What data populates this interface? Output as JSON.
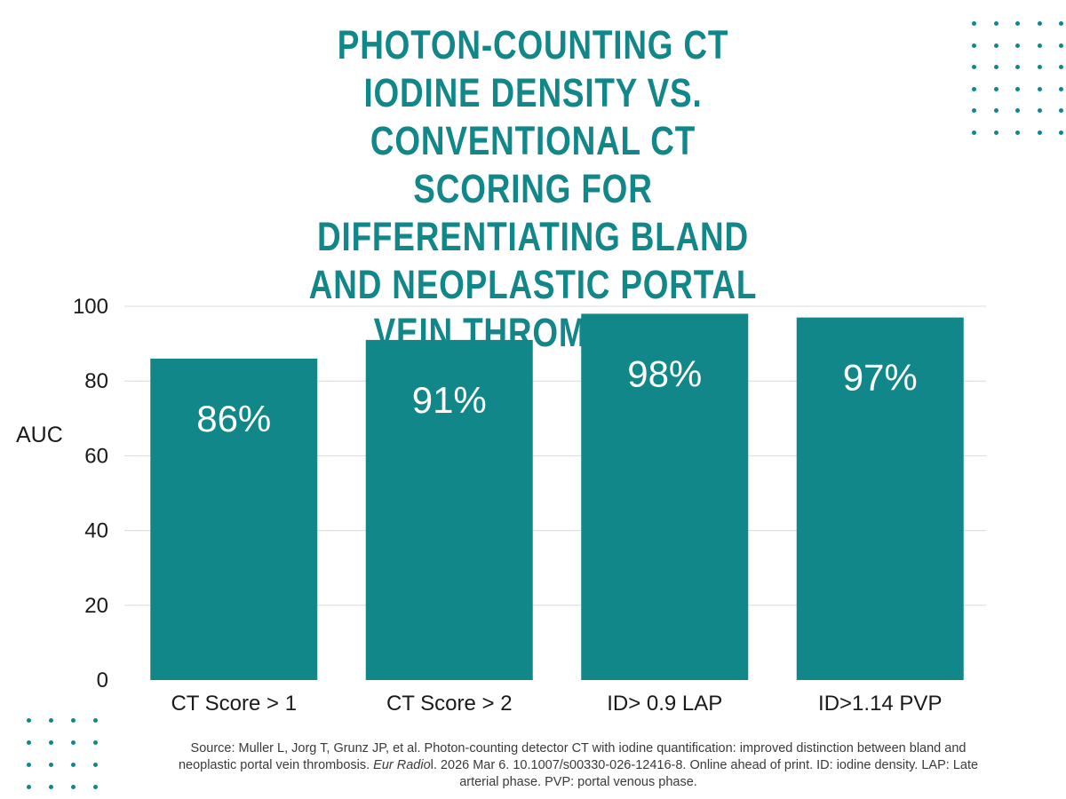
{
  "title": "PHOTON-COUNTING CT IODINE DENSITY VS. CONVENTIONAL CT SCORING FOR DIFFERENTIATING BLAND AND NEOPLASTIC PORTAL VEIN THROMBOSIS",
  "colors": {
    "accent": "#11878a",
    "grid": "#d6dcdc",
    "text": "#1a1a1a"
  },
  "chart_data": {
    "type": "bar",
    "categories": [
      "CT Score > 1",
      "CT Score > 2",
      "ID> 0.9 LAP",
      "ID>1.14 PVP"
    ],
    "values": [
      86,
      91,
      98,
      97
    ],
    "data_labels": [
      "86%",
      "91%",
      "98%",
      "97%"
    ],
    "ylabel": "AUC",
    "ylim": [
      0,
      100
    ],
    "yticks": [
      0,
      20,
      40,
      60,
      80,
      100
    ],
    "grid": true,
    "legend": "none"
  },
  "source": {
    "part1": "Source: Muller L, Jorg T, Grunz JP, et al. Photon-counting detector CT with iodine quantification: improved distinction between bland and neoplastic portal vein thrombosis. ",
    "journal": "Eur Radio",
    "part2": "l. 2026 Mar 6. 10.1007/s00330-026-12416-8. Online ahead of print. ID: iodine density. LAP: Late arterial phase. PVP: portal venous phase."
  }
}
